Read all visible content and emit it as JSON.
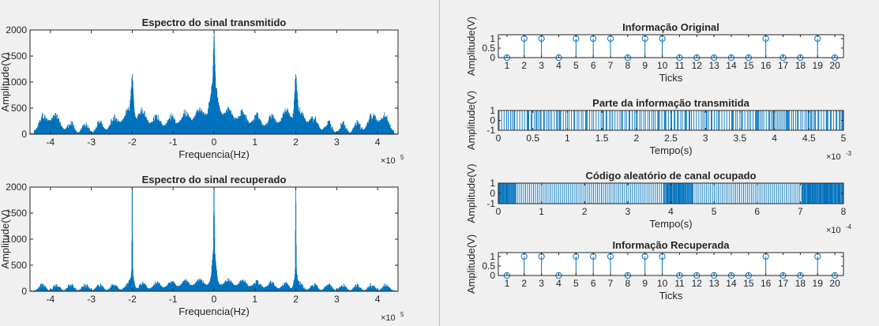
{
  "colors": {
    "line": "#0072bd",
    "axes": "#262626",
    "background": "#f0f0f0",
    "plot_bg": "#ffffff"
  },
  "chart_data": [
    {
      "id": "spec_tx",
      "type": "line",
      "title": "Espectro do sinal transmitido",
      "xlabel": "Frequencia(Hz)",
      "ylabel": "Amplitude(V)",
      "x_exponent": "×10",
      "x_exponent_power": "5",
      "xlim": [
        -4.5,
        4.5
      ],
      "ylim": [
        0,
        2000
      ],
      "xticks": [
        -4,
        -3,
        -2,
        -1,
        0,
        1,
        2,
        3,
        4
      ],
      "yticks": [
        0,
        500,
        1000,
        1500,
        2000
      ],
      "spectrum_profile": {
        "base": 30,
        "edge": 4.4,
        "peak": 1990,
        "bumps": [
          {
            "center": 0,
            "height": 600,
            "width": 0.12
          },
          {
            "center": 0,
            "height": 1000,
            "width": 0.02
          },
          {
            "center": 2,
            "height": 850,
            "width": 0.04
          },
          {
            "center": -2,
            "height": 850,
            "width": 0.04
          },
          {
            "center": 2,
            "height": 300,
            "width": 0.5
          },
          {
            "center": -2,
            "height": 300,
            "width": 0.5
          },
          {
            "center": 0,
            "height": 350,
            "width": 1.2
          },
          {
            "center": 4,
            "height": 250,
            "width": 0.3
          },
          {
            "center": -4,
            "height": 250,
            "width": 0.3
          }
        ],
        "noise": 180,
        "lobe_period": 0.35
      }
    },
    {
      "id": "spec_rx",
      "type": "line",
      "title": "Espectro do sinal recuperado",
      "xlabel": "Frequencia(Hz)",
      "ylabel": "Amplitude(V)",
      "x_exponent": "×10",
      "x_exponent_power": "5",
      "xlim": [
        -4.5,
        4.5
      ],
      "ylim": [
        0,
        2000
      ],
      "xticks": [
        -4,
        -3,
        -2,
        -1,
        0,
        1,
        2,
        3,
        4
      ],
      "yticks": [
        0,
        500,
        1000,
        1500,
        2000
      ],
      "spectrum_profile": {
        "base": 20,
        "edge": 4.4,
        "peak": 2000,
        "bumps": [
          {
            "center": 0,
            "height": 2000,
            "width": 0.01
          },
          {
            "center": 2,
            "height": 2000,
            "width": 0.01
          },
          {
            "center": -2,
            "height": 2000,
            "width": 0.01
          },
          {
            "center": 0,
            "height": 700,
            "width": 0.06
          },
          {
            "center": 2,
            "height": 300,
            "width": 0.06
          },
          {
            "center": -2,
            "height": 300,
            "width": 0.06
          },
          {
            "center": 0,
            "height": 120,
            "width": 1.5
          }
        ],
        "noise": 110,
        "lobe_period": 0.35
      }
    },
    {
      "id": "info_orig",
      "type": "stem",
      "title": "Informação Original",
      "xlabel": "Ticks",
      "ylabel": "Amplitude(V)",
      "xlim": [
        0.5,
        20.5
      ],
      "ylim": [
        0,
        1.2
      ],
      "xticks": [
        1,
        2,
        3,
        4,
        5,
        6,
        7,
        8,
        9,
        10,
        11,
        12,
        13,
        14,
        15,
        16,
        17,
        18,
        19,
        20
      ],
      "yticks": [
        0,
        0.5,
        1
      ],
      "ytick_labels": [
        "0",
        "0.5",
        "1"
      ],
      "x": [
        1,
        2,
        3,
        4,
        5,
        6,
        7,
        8,
        9,
        10,
        11,
        12,
        13,
        14,
        15,
        16,
        17,
        18,
        19,
        20
      ],
      "values": [
        0,
        1,
        1,
        0,
        1,
        1,
        1,
        0,
        1,
        1,
        0,
        0,
        0,
        0,
        0,
        1,
        0,
        0,
        1,
        0
      ]
    },
    {
      "id": "transmitted",
      "type": "line",
      "title": "Parte da informação transmitida",
      "xlabel": "Tempo(s)",
      "ylabel": "Amplitude(V)",
      "x_exponent": "×10",
      "x_exponent_power": "-3",
      "xlim": [
        0,
        5
      ],
      "ylim": [
        -1,
        1
      ],
      "xticks": [
        0,
        0.5,
        1,
        1.5,
        2,
        2.5,
        3,
        3.5,
        4,
        4.5,
        5
      ],
      "xtick_labels": [
        "0",
        "0.5",
        "1",
        "1.5",
        "2",
        "2.5",
        "3",
        "3.5",
        "4",
        "4.5",
        "5"
      ],
      "yticks": [
        -1,
        0,
        1
      ],
      "ytick_labels": [
        "-1",
        "0",
        "1"
      ],
      "signal": "dense pseudo-random ±1 chip sequence"
    },
    {
      "id": "code",
      "type": "line",
      "title": "Código aleatório de canal ocupado",
      "xlabel": "Tempo(s)",
      "ylabel": "Amplitude(V)",
      "x_exponent": "×10",
      "x_exponent_power": "-4",
      "xlim": [
        0,
        8
      ],
      "ylim": [
        -1,
        1
      ],
      "xticks": [
        0,
        1,
        2,
        3,
        4,
        5,
        6,
        7,
        8
      ],
      "yticks": [
        -1,
        0,
        1
      ],
      "ytick_labels": [
        "-1",
        "0",
        "1"
      ],
      "signal": "fast ±1 oscillation with dense bursts near 0–0.4, 3.8–4.5 and 7–8"
    },
    {
      "id": "info_rec",
      "type": "stem",
      "title": "Informação Recuperada",
      "xlabel": "Ticks",
      "ylabel": "Amplitude(V)",
      "xlim": [
        0.5,
        20.5
      ],
      "ylim": [
        0,
        1.2
      ],
      "xticks": [
        1,
        2,
        3,
        4,
        5,
        6,
        7,
        8,
        9,
        10,
        11,
        12,
        13,
        14,
        15,
        16,
        17,
        18,
        19,
        20
      ],
      "yticks": [
        0,
        0.5,
        1
      ],
      "ytick_labels": [
        "0",
        "0.5",
        "1"
      ],
      "x": [
        1,
        2,
        3,
        4,
        5,
        6,
        7,
        8,
        9,
        10,
        11,
        12,
        13,
        14,
        15,
        16,
        17,
        18,
        19,
        20
      ],
      "values": [
        0,
        1,
        1,
        0,
        1,
        1,
        1,
        0,
        1,
        1,
        0,
        0,
        0,
        0,
        0,
        1,
        0,
        0,
        1,
        0
      ]
    }
  ]
}
